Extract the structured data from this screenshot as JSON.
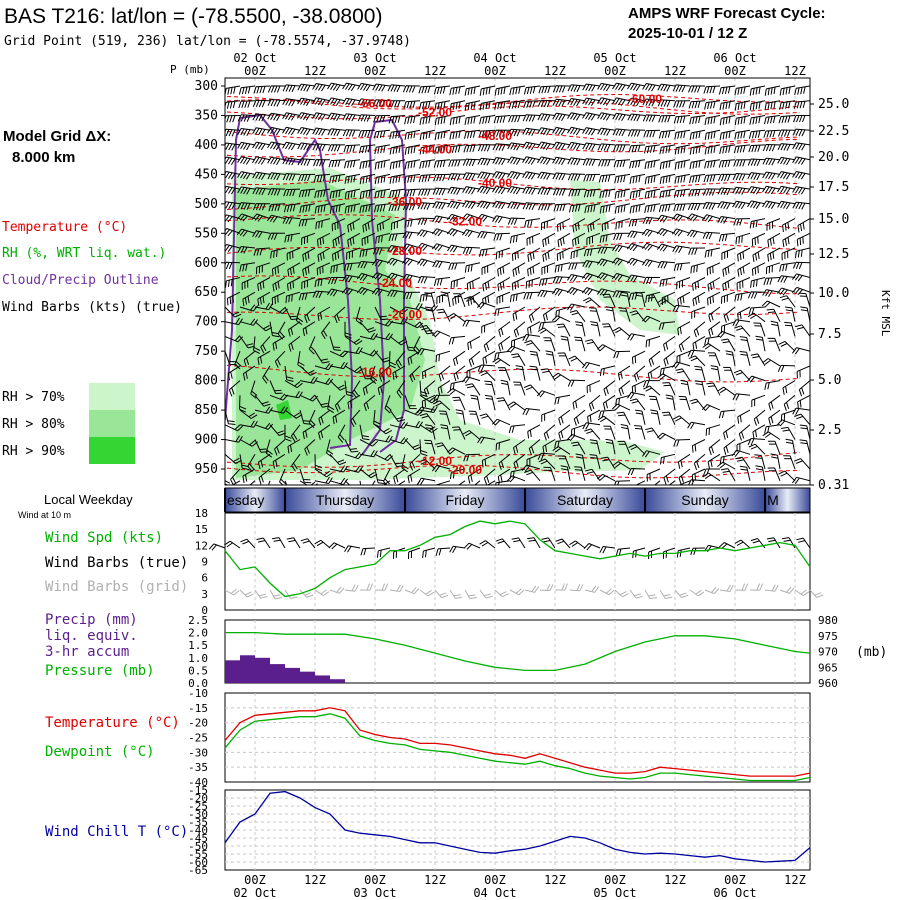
{
  "header": {
    "title": "BAS T216:  lat/lon = (-78.5500, -38.0800)",
    "grid_point": "Grid Point (519, 236) lat/lon = (-78.5574, -37.9748)",
    "cycle_label": "AMPS WRF Forecast Cycle:",
    "cycle_value": "2025-10-01 / 12  Z"
  },
  "left_labels": {
    "model_grid": "Model Grid ΔX:",
    "model_grid_value": "8.000 km",
    "temperature": "Temperature (°C)",
    "rh": "RH (%, WRT liq. wat.)",
    "cloud": "Cloud/Precip Outline",
    "wind_barbs": "Wind Barbs (kts) (true)",
    "rh70": "RH > 70%",
    "rh80": "RH > 80%",
    "rh90": "RH > 90%",
    "local_weekday": "Local Weekday",
    "wind_at_10m": "Wind at 10 m",
    "wind_spd": "Wind Spd (kts)",
    "wind_barbs_true": "Wind Barbs (true)",
    "wind_barbs_grid": "Wind Barbs (grid)",
    "precip1": "Precip (mm)",
    "precip2": "liq. equiv.",
    "precip3": "3-hr accum",
    "pressure": "Pressure (mb)",
    "temp2": "Temperature (°C)",
    "dewpoint": "Dewpoint (°C)",
    "windchill": "Wind Chill T (°C)"
  },
  "colors": {
    "temperature": "#e00000",
    "rh": "#00b000",
    "cloud": "#7030a0",
    "wind": "#000000",
    "wind_grid": "#b0b0b0",
    "windchill": "#0000a0",
    "precip": "#5a1f8c",
    "rh70": "#ccf5cc",
    "rh80": "#99e699",
    "rh90": "#33d633"
  },
  "chart_data": [
    {
      "type": "heatmap",
      "panel": "time-height cross section",
      "ylabel": "P (mb)",
      "ylabel_right": "Kft MSL",
      "ylim": [
        300,
        975
      ],
      "y_ticks": [
        "300",
        "350",
        "400",
        "450",
        "500",
        "550",
        "600",
        "650",
        "700",
        "750",
        "800",
        "850",
        "900",
        "950"
      ],
      "right_ticks": [
        "25.0",
        "22.5",
        "20.0",
        "17.5",
        "15.0",
        "12.5",
        "10.0",
        "7.5",
        "5.0",
        "2.5",
        "0.31"
      ],
      "time_ticks": [
        "00Z",
        "12Z",
        "00Z",
        "12Z",
        "00Z",
        "12Z",
        "00Z",
        "12Z",
        "00Z",
        "12Z"
      ],
      "date_labels": [
        "02 Oct",
        "03 Oct",
        "04 Oct",
        "05 Oct",
        "06 Oct"
      ],
      "x_range_hours": [
        0,
        117
      ],
      "temperature_contours": [
        {
          "label": "-60.00",
          "hour": 84,
          "p": 322
        },
        {
          "label": "-56.00",
          "hour": 30,
          "p": 330
        },
        {
          "label": "-52.00",
          "hour": 42,
          "p": 345
        },
        {
          "label": "-48.00",
          "hour": 54,
          "p": 385
        },
        {
          "label": "-44.00",
          "hour": 42,
          "p": 408
        },
        {
          "label": "-40.00",
          "hour": 54,
          "p": 465
        },
        {
          "label": "-36.00",
          "hour": 36,
          "p": 497
        },
        {
          "label": "-32.00",
          "hour": 48,
          "p": 530
        },
        {
          "label": "-28.00",
          "hour": 36,
          "p": 580
        },
        {
          "label": "-24.00",
          "hour": 34,
          "p": 634
        },
        {
          "label": "-20.00",
          "hour": 36,
          "p": 688
        },
        {
          "label": "-16.00",
          "hour": 30,
          "p": 785
        },
        {
          "label": "-12.00",
          "hour": 42,
          "p": 936
        },
        {
          "label": "-20.00",
          "hour": 48,
          "p": 952
        }
      ]
    },
    {
      "type": "line",
      "panel": "10m wind",
      "ylim": [
        0,
        18
      ],
      "y_ticks": [
        "0",
        "3",
        "6",
        "9",
        "12",
        "15",
        "18"
      ],
      "x": [
        0,
        3,
        6,
        9,
        12,
        15,
        18,
        21,
        24,
        27,
        30,
        33,
        36,
        39,
        42,
        45,
        48,
        51,
        54,
        57,
        60,
        63,
        66,
        69,
        72,
        75,
        78,
        81,
        84,
        87,
        90,
        93,
        96,
        99,
        102,
        105,
        108,
        111,
        114,
        117
      ],
      "series": [
        {
          "name": "Wind Spd (kts)",
          "values": [
            11,
            7.5,
            8,
            5,
            2.5,
            3,
            4,
            6,
            7.5,
            8,
            8.5,
            11,
            11,
            12,
            13.5,
            14,
            15.5,
            16.5,
            16,
            16.5,
            16,
            13,
            11,
            10.5,
            10,
            9.5,
            10,
            10.5,
            10,
            10.5,
            10.5,
            11,
            11,
            11.5,
            11,
            11.5,
            12,
            12.5,
            12,
            8
          ]
        }
      ]
    },
    {
      "type": "line",
      "panel": "precip and pressure",
      "ylim_precip": [
        0,
        2.5
      ],
      "precip_ticks": [
        "0.0",
        "0.5",
        "1.0",
        "1.5",
        "2.0",
        "2.5"
      ],
      "ylim_pressure": [
        960,
        980
      ],
      "pressure_ticks": [
        "960",
        "965",
        "970",
        "975",
        "980"
      ],
      "pressure_unit": "(mb)",
      "precip_bars": [
        {
          "hour": 0,
          "value": 0.9
        },
        {
          "hour": 3,
          "value": 1.1
        },
        {
          "hour": 6,
          "value": 1.0
        },
        {
          "hour": 9,
          "value": 0.75
        },
        {
          "hour": 12,
          "value": 0.6
        },
        {
          "hour": 15,
          "value": 0.45
        },
        {
          "hour": 18,
          "value": 0.3
        },
        {
          "hour": 21,
          "value": 0.15
        }
      ],
      "x": [
        0,
        6,
        12,
        18,
        24,
        30,
        36,
        42,
        48,
        54,
        60,
        66,
        72,
        78,
        84,
        90,
        96,
        102,
        108,
        114,
        117
      ],
      "series": [
        {
          "name": "Pressure (mb)",
          "values": [
            976,
            976,
            975.5,
            975.5,
            975.5,
            974,
            972,
            969.5,
            967,
            965,
            964,
            964,
            966,
            970,
            973,
            975,
            975,
            974,
            972,
            970,
            969.5
          ]
        }
      ]
    },
    {
      "type": "line",
      "panel": "temperature and dewpoint",
      "ylim": [
        -40,
        -10
      ],
      "y_ticks": [
        "-40",
        "-35",
        "-30",
        "-25",
        "-20",
        "-15",
        "-10"
      ],
      "x": [
        0,
        3,
        6,
        9,
        12,
        15,
        18,
        21,
        24,
        27,
        30,
        33,
        36,
        39,
        42,
        45,
        48,
        51,
        54,
        57,
        60,
        63,
        66,
        69,
        72,
        75,
        78,
        81,
        84,
        87,
        90,
        93,
        96,
        99,
        102,
        105,
        108,
        111,
        114,
        117
      ],
      "series": [
        {
          "name": "Temperature (°C)",
          "values": [
            -26,
            -20,
            -17.5,
            -17,
            -16.5,
            -16,
            -16,
            -15,
            -16,
            -22.5,
            -24,
            -25,
            -25.5,
            -27,
            -27,
            -27.5,
            -28.5,
            -29.5,
            -30.5,
            -31,
            -32,
            -30.5,
            -32,
            -33.5,
            -35,
            -36,
            -37,
            -37,
            -36.5,
            -35,
            -35.5,
            -36,
            -36.5,
            -37,
            -37.5,
            -38,
            -38,
            -38,
            -38,
            -37
          ]
        },
        {
          "name": "Dewpoint (°C)",
          "values": [
            -28.5,
            -22.5,
            -19.5,
            -19,
            -18.5,
            -18,
            -18,
            -17,
            -18.5,
            -24.5,
            -26,
            -27,
            -27.5,
            -29,
            -29.5,
            -30,
            -31,
            -32,
            -33,
            -33.5,
            -34,
            -33,
            -34.5,
            -35.5,
            -37,
            -38,
            -38.5,
            -39,
            -38.5,
            -37,
            -37,
            -37.5,
            -38,
            -38.5,
            -39,
            -39.5,
            -39.5,
            -39.5,
            -39.5,
            -38.5
          ]
        }
      ]
    },
    {
      "type": "line",
      "panel": "wind chill",
      "ylim": [
        -65,
        -15
      ],
      "y_ticks": [
        "-15",
        "-20",
        "-25",
        "-30",
        "-35",
        "-40",
        "-45",
        "-50",
        "-55",
        "-60",
        "-65"
      ],
      "x_tick_labels": [
        "00Z",
        "12Z",
        "00Z",
        "12Z",
        "00Z",
        "12Z",
        "00Z",
        "12Z",
        "00Z",
        "12Z"
      ],
      "date_labels": [
        "02 Oct",
        "03 Oct",
        "04 Oct",
        "05 Oct",
        "06 Oct"
      ],
      "x": [
        0,
        3,
        6,
        9,
        12,
        15,
        18,
        21,
        24,
        27,
        30,
        33,
        36,
        39,
        42,
        45,
        48,
        51,
        54,
        57,
        60,
        63,
        66,
        69,
        72,
        75,
        78,
        81,
        84,
        87,
        90,
        93,
        96,
        99,
        102,
        105,
        108,
        111,
        114,
        117
      ],
      "series": [
        {
          "name": "Wind Chill T (°C)",
          "values": [
            -48,
            -35,
            -30,
            -17,
            -16,
            -20,
            -26,
            -30,
            -40,
            -42,
            -43,
            -44,
            -46,
            -48,
            -48,
            -50,
            -52,
            -54,
            -54.5,
            -53,
            -52,
            -50,
            -47,
            -44,
            -45,
            -48,
            -52,
            -54,
            -55,
            -54.5,
            -55,
            -56,
            -57,
            -56,
            -58,
            -59,
            -60,
            -59.5,
            -59,
            -51
          ]
        }
      ]
    },
    {
      "type": "table",
      "panel": "local weekday strip",
      "days": [
        "esday",
        "Thursday",
        "Friday",
        "Saturday",
        "Sunday",
        "M"
      ]
    }
  ]
}
